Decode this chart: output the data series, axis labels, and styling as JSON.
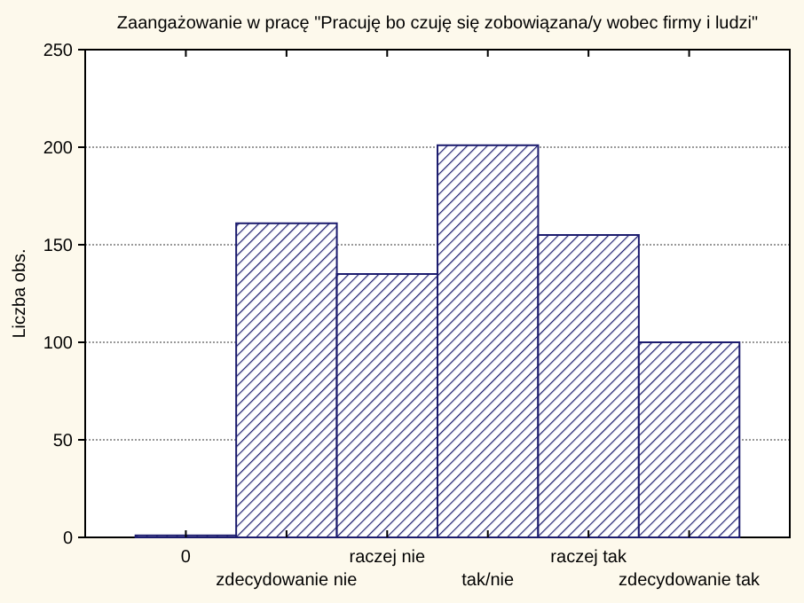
{
  "chart_data": {
    "type": "bar",
    "title": "Zaangażowanie w pracę \"Pracuję bo czuję się zobowiązana/y wobec firmy i ludzi\"",
    "ylabel": "Liczba obs.",
    "categories": [
      "0",
      "zdecydowanie nie",
      "raczej nie",
      "tak/nie",
      "raczej tak",
      "zdecydowanie tak"
    ],
    "values": [
      1,
      161,
      135,
      201,
      155,
      100
    ],
    "color": "#1c1c6e",
    "ylim": [
      0,
      250
    ],
    "yticks": [
      0,
      50,
      100,
      150,
      200,
      250
    ],
    "grid": "y"
  }
}
